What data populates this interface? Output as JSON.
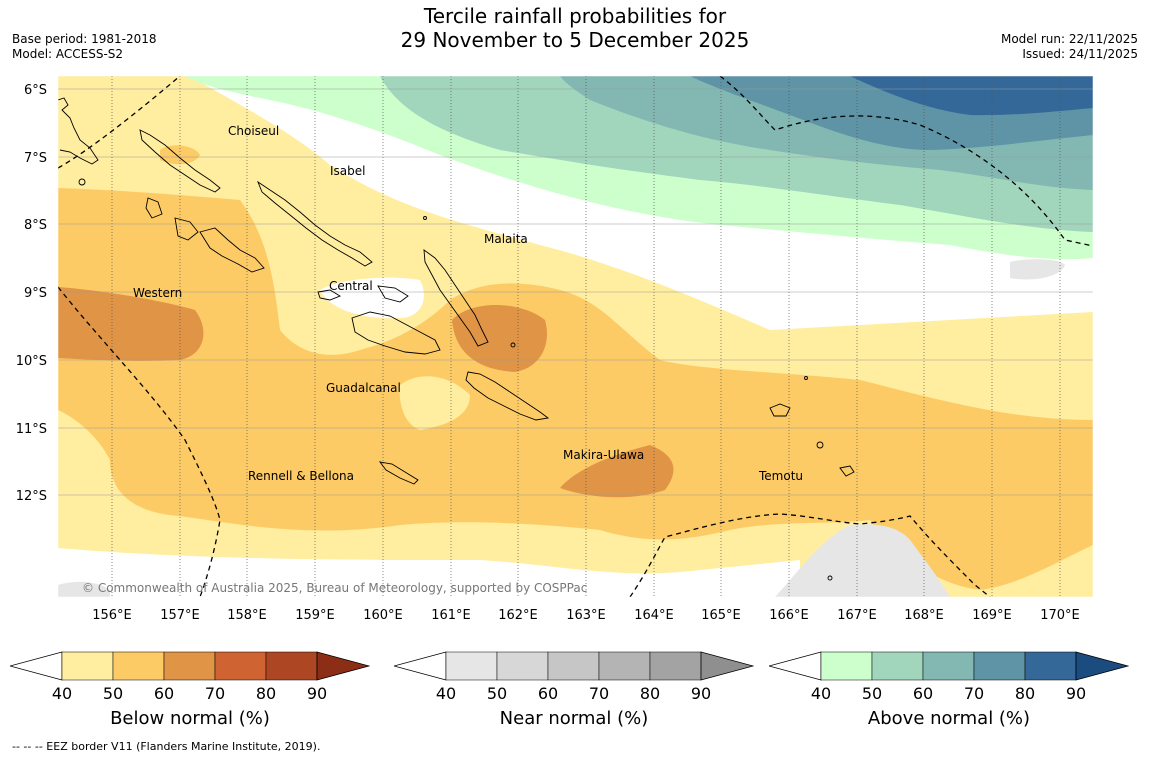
{
  "header": {
    "title_line1": "Tercile rainfall probabilities for",
    "title_line2": "29 November to 5 December 2025",
    "base_period": "Base period: 1981-2018",
    "model": "Model: ACCESS-S2",
    "model_run": "Model run: 22/11/2025",
    "issued": "Issued: 24/11/2025"
  },
  "map": {
    "lat_labels": [
      "6°S",
      "7°S",
      "8°S",
      "9°S",
      "10°S",
      "11°S",
      "12°S"
    ],
    "lon_labels": [
      "156°E",
      "157°E",
      "158°E",
      "159°E",
      "160°E",
      "161°E",
      "162°E",
      "163°E",
      "164°E",
      "165°E",
      "166°E",
      "167°E",
      "168°E",
      "169°E",
      "170°E"
    ],
    "provinces": [
      "Choiseul",
      "Isabel",
      "Malaita",
      "Western",
      "Central",
      "Guadalcanal",
      "Makira-Ulawa",
      "Rennell & Bellona",
      "Temotu"
    ],
    "copyright": "© Commonwealth of Australia 2025, Bureau of Meteorology, supported by COSPPac"
  },
  "colorbars": [
    {
      "label": "Below normal (%)",
      "ticks": [
        "40",
        "50",
        "60",
        "70",
        "80",
        "90"
      ],
      "colors": [
        "#ffeda0",
        "#fdcb66",
        "#e09446",
        "#cf6331",
        "#ad4723",
        "#8c2d16"
      ]
    },
    {
      "label": "Near normal (%)",
      "ticks": [
        "40",
        "50",
        "60",
        "70",
        "80",
        "90"
      ],
      "colors": [
        "#e6e6e6",
        "#d7d7d7",
        "#c6c6c6",
        "#b4b4b4",
        "#a3a3a3",
        "#8f8f8f"
      ]
    },
    {
      "label": "Above normal (%)",
      "ticks": [
        "40",
        "50",
        "60",
        "70",
        "80",
        "90"
      ],
      "colors": [
        "#ccffcc",
        "#a1d6bc",
        "#82b7b2",
        "#5e94a5",
        "#346898",
        "#1b4c80"
      ]
    }
  ],
  "footer": {
    "legend_text": "--  --  -- EEZ border V11 (Flanders Marine Institute, 2019)."
  }
}
